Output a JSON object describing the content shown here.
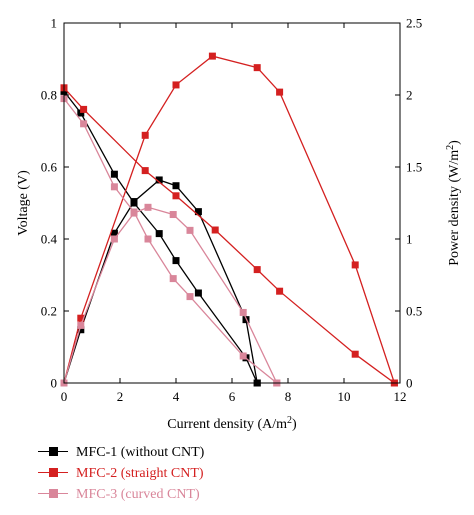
{
  "chart_data": {
    "type": "line",
    "x_axis": {
      "label_main": "Current density (A/m",
      "label_sup": "2",
      "label_tail": ")",
      "min": 0,
      "max": 12,
      "ticks": [
        "0",
        "2",
        "4",
        "6",
        "8",
        "10",
        "12"
      ],
      "tick_values": [
        0,
        2,
        4,
        6,
        8,
        10,
        12
      ]
    },
    "y_left_axis": {
      "label": "Voltage (V)",
      "min": 0,
      "max": 1,
      "ticks": [
        "0",
        "0.2",
        "0.4",
        "0.6",
        "0.8",
        "1"
      ],
      "tick_values": [
        0,
        0.2,
        0.4,
        0.6,
        0.8,
        1.0
      ]
    },
    "y_right_axis": {
      "label_main": "Power density (W/m",
      "label_sup": "2",
      "label_tail": ")",
      "min": 0,
      "max": 2.5,
      "ticks": [
        "0",
        "0.5",
        "1",
        "1.5",
        "2",
        "2.5"
      ],
      "tick_values": [
        0,
        0.5,
        1.0,
        1.5,
        2.0,
        2.5
      ]
    },
    "grid": false,
    "legend_position": "bottom-left, below plot",
    "series": [
      {
        "name": "MFC-1 (without CNT)",
        "color": "#000000",
        "voltage": {
          "x": [
            0,
            0.6,
            1.8,
            2.5,
            3.4,
            4.0,
            4.8,
            6.5,
            6.9
          ],
          "y": [
            0.81,
            0.75,
            0.58,
            0.5,
            0.415,
            0.34,
            0.25,
            0.07,
            0
          ]
        },
        "power": {
          "x": [
            0,
            0.6,
            1.8,
            2.5,
            3.4,
            4.0,
            4.8,
            6.5,
            6.9
          ],
          "y": [
            0,
            0.37,
            1.04,
            1.26,
            1.41,
            1.37,
            1.19,
            0.44,
            0
          ]
        }
      },
      {
        "name": "MFC-2 (straight CNT)",
        "color": "#d42020",
        "voltage": {
          "x": [
            0,
            0.7,
            2.9,
            4.0,
            5.4,
            6.9,
            7.7,
            10.4,
            11.8
          ],
          "y": [
            0.82,
            0.76,
            0.59,
            0.52,
            0.425,
            0.315,
            0.255,
            0.08,
            0
          ]
        },
        "power": {
          "x": [
            0,
            0.6,
            2.9,
            4.0,
            5.3,
            6.9,
            7.7,
            10.4,
            11.8
          ],
          "y": [
            0,
            0.45,
            1.72,
            2.07,
            2.27,
            2.19,
            2.02,
            0.82,
            0
          ]
        }
      },
      {
        "name": "MFC-3 (curved CNT)",
        "color": "#d9869a",
        "voltage": {
          "x": [
            0,
            0.7,
            1.8,
            2.5,
            3.0,
            3.9,
            4.5,
            6.4,
            7.6
          ],
          "y": [
            0.79,
            0.72,
            0.545,
            0.475,
            0.4,
            0.29,
            0.24,
            0.075,
            0
          ]
        },
        "power": {
          "x": [
            0,
            0.6,
            1.8,
            2.5,
            3.0,
            3.9,
            4.5,
            6.4,
            7.6
          ],
          "y": [
            0,
            0.4,
            1.0,
            1.18,
            1.22,
            1.17,
            1.06,
            0.49,
            0
          ]
        }
      }
    ]
  }
}
